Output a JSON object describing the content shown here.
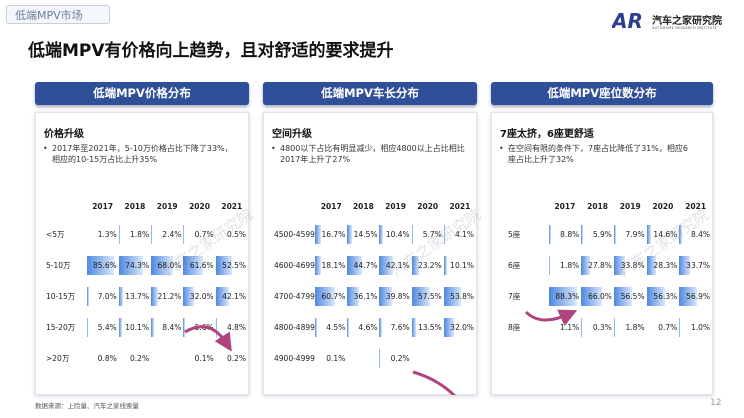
{
  "header": {
    "tag": "低端MPV市场",
    "logo_mark": "AR",
    "logo_name": "汽车之家研究院",
    "logo_subtitle": "AUTOHOME RESEARCH INSTITUTE"
  },
  "title": "低端MPV有价格向上趋势，且对舒适的要求提升",
  "panels": [
    {
      "heading": "低端MPV价格分布",
      "point": "价格升级",
      "bullet": "2017年至2021年，5-10万价格占比下降了33%，相应的10-15万占比上升35%",
      "table": {
        "columns": [
          "2017",
          "2018",
          "2019",
          "2020",
          "2021"
        ],
        "rows": [
          {
            "label": "<5万",
            "cells": [
              "1.3%",
              "1.8%",
              "2.4%",
              "0.7%",
              "0.5%"
            ]
          },
          {
            "label": "5-10万",
            "cells": [
              "85.6%",
              "74.3%",
              "68.0%",
              "61.6%",
              "52.5%"
            ]
          },
          {
            "label": "10-15万",
            "cells": [
              "7.0%",
              "13.7%",
              "21.2%",
              "32.0%",
              "42.1%"
            ]
          },
          {
            "label": "15-20万",
            "cells": [
              "5.4%",
              "10.1%",
              "8.4%",
              "5.6%",
              "4.8%"
            ]
          },
          {
            "label": ">20万",
            "cells": [
              "0.8%",
              "0.2%",
              null,
              "0.1%",
              "0.2%"
            ]
          }
        ]
      }
    },
    {
      "heading": "低端MPV车长分布",
      "point": "空间升级",
      "bullet": "4800以下占比有明显减少，相应4800以上占比相比2017年上升了27%",
      "table": {
        "columns": [
          "2017",
          "2018",
          "2019",
          "2020",
          "2021"
        ],
        "rows": [
          {
            "label": "4500-4599",
            "cells": [
              "16.7%",
              "14.5%",
              "10.4%",
              "5.7%",
              "4.1%"
            ]
          },
          {
            "label": "4600-4699",
            "cells": [
              "18.1%",
              "44.7%",
              "42.1%",
              "23.2%",
              "10.1%"
            ]
          },
          {
            "label": "4700-4799",
            "cells": [
              "60.7%",
              "36.1%",
              "39.8%",
              "57.5%",
              "53.8%"
            ]
          },
          {
            "label": "4800-4899",
            "cells": [
              "4.5%",
              "4.6%",
              "7.6%",
              "13.5%",
              "32.0%"
            ]
          },
          {
            "label": "4900-4999",
            "cells": [
              "0.1%",
              null,
              "0.2%",
              null,
              null
            ]
          }
        ]
      }
    },
    {
      "heading": "低端MPV座位数分布",
      "point": "7座太挤，6座更舒适",
      "bullet": "在空间有限的条件下，7座占比降低了31%，相应6座占比上升了32%",
      "table": {
        "columns": [
          "2017",
          "2018",
          "2019",
          "2020",
          "2021"
        ],
        "rows": [
          {
            "label": "5座",
            "cells": [
              "8.8%",
              "5.9%",
              "7.9%",
              "14.6%",
              "8.4%"
            ]
          },
          {
            "label": "6座",
            "cells": [
              "1.8%",
              "27.8%",
              "33.8%",
              "28.3%",
              "33.7%"
            ]
          },
          {
            "label": "7座",
            "cells": [
              "88.3%",
              "66.0%",
              "56.5%",
              "56.3%",
              "56.9%"
            ]
          },
          {
            "label": "8座",
            "cells": [
              "1.1%",
              "0.3%",
              "1.8%",
              "0.7%",
              "1.0%"
            ]
          }
        ]
      }
    }
  ],
  "watermark": "汽车之家研究院",
  "footer": {
    "source": "数据来源：上险量、汽车之家线索量",
    "page": "12"
  }
}
